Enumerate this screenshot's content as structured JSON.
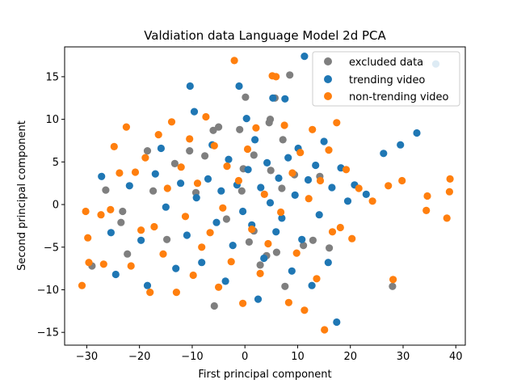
{
  "chart_data": {
    "type": "scatter",
    "title": "Valdiation data Language Model 2d PCA",
    "xlabel": "First principal component",
    "ylabel": "Second principal component",
    "xlim": [
      -34.2,
      41.8
    ],
    "ylim": [
      -16.5,
      18.5
    ],
    "xticks": [
      -30,
      -20,
      -10,
      0,
      10,
      20,
      30,
      40
    ],
    "yticks": [
      -15,
      -10,
      -5,
      0,
      5,
      10,
      15
    ],
    "grid": false,
    "legend_position": "top-right",
    "series": [
      {
        "name": "excluded data",
        "color": "#7f7f7f",
        "points": [
          [
            -29.0,
            -7.2
          ],
          [
            -26.4,
            1.7
          ],
          [
            -23.5,
            -2.1
          ],
          [
            -23.2,
            -0.8
          ],
          [
            -22.3,
            -5.8
          ],
          [
            -18.5,
            6.3
          ],
          [
            -17.4,
            1.6
          ],
          [
            -14.8,
            -4.1
          ],
          [
            -13.3,
            4.8
          ],
          [
            -10.5,
            6.3
          ],
          [
            -9.3,
            1.4
          ],
          [
            -7.6,
            5.7
          ],
          [
            -6.0,
            8.7
          ],
          [
            -5.8,
            -11.9
          ],
          [
            -5.0,
            9.1
          ],
          [
            -3.5,
            -1.7
          ],
          [
            -1.0,
            8.8
          ],
          [
            -0.6,
            1.6
          ],
          [
            -0.3,
            4.2
          ],
          [
            0.1,
            12.6
          ],
          [
            0.8,
            -4.4
          ],
          [
            1.7,
            -3.1
          ],
          [
            1.7,
            5.8
          ],
          [
            2.9,
            -7.1
          ],
          [
            4.1,
            -6.0
          ],
          [
            4.6,
            9.6
          ],
          [
            4.8,
            10.0
          ],
          [
            4.9,
            4.0
          ],
          [
            5.7,
            12.5
          ],
          [
            6.0,
            -5.6
          ],
          [
            7.0,
            1.9
          ],
          [
            7.2,
            7.6
          ],
          [
            7.6,
            -9.6
          ],
          [
            8.5,
            15.2
          ],
          [
            9.4,
            3.5
          ],
          [
            11.1,
            -4.8
          ],
          [
            12.9,
            -4.2
          ],
          [
            14.2,
            3.3
          ],
          [
            16.0,
            -5.1
          ],
          [
            28.0,
            -9.6
          ]
        ]
      },
      {
        "name": "trending video",
        "color": "#1f77b4",
        "points": [
          [
            -27.2,
            3.3
          ],
          [
            -25.4,
            -3.3
          ],
          [
            -24.5,
            -8.2
          ],
          [
            -21.9,
            2.2
          ],
          [
            -19.7,
            -4.2
          ],
          [
            -18.5,
            -9.5
          ],
          [
            -17.0,
            3.6
          ],
          [
            -15.9,
            6.6
          ],
          [
            -15.0,
            -0.3
          ],
          [
            -13.1,
            -7.5
          ],
          [
            -12.2,
            2.5
          ],
          [
            -11.0,
            -3.6
          ],
          [
            -10.4,
            13.9
          ],
          [
            -9.6,
            10.9
          ],
          [
            -9.2,
            0.8
          ],
          [
            -8.2,
            -6.8
          ],
          [
            -7.0,
            3.0
          ],
          [
            -6.2,
            7.0
          ],
          [
            -5.4,
            -2.1
          ],
          [
            -4.5,
            1.6
          ],
          [
            -3.7,
            -9.0
          ],
          [
            -3.1,
            5.3
          ],
          [
            -2.3,
            -4.8
          ],
          [
            -1.5,
            2.3
          ],
          [
            -1.1,
            13.9
          ],
          [
            -0.4,
            -0.8
          ],
          [
            0.3,
            10.1
          ],
          [
            0.6,
            4.1
          ],
          [
            1.3,
            -2.4
          ],
          [
            1.9,
            7.6
          ],
          [
            2.5,
            -11.1
          ],
          [
            3.0,
            2.0
          ],
          [
            3.6,
            -6.3
          ],
          [
            4.2,
            4.9
          ],
          [
            4.8,
            0.2
          ],
          [
            5.3,
            12.5
          ],
          [
            5.9,
            -3.2
          ],
          [
            6.4,
            3.1
          ],
          [
            7.0,
            -1.6
          ],
          [
            7.6,
            12.4
          ],
          [
            8.2,
            5.5
          ],
          [
            8.9,
            -7.8
          ],
          [
            9.5,
            1.1
          ],
          [
            10.1,
            6.6
          ],
          [
            10.8,
            -4.1
          ],
          [
            11.3,
            17.4
          ],
          [
            12.0,
            2.9
          ],
          [
            12.7,
            -9.5
          ],
          [
            13.4,
            4.6
          ],
          [
            14.1,
            -1.2
          ],
          [
            15.0,
            7.4
          ],
          [
            15.8,
            -6.8
          ],
          [
            16.5,
            2.0
          ],
          [
            17.4,
            -13.8
          ],
          [
            18.2,
            4.3
          ],
          [
            19.5,
            0.4
          ],
          [
            20.8,
            2.3
          ],
          [
            23.0,
            1.2
          ],
          [
            26.3,
            6.0
          ],
          [
            29.5,
            7.0
          ],
          [
            32.6,
            8.4
          ],
          [
            36.2,
            16.5
          ]
        ]
      },
      {
        "name": "non-trending video",
        "color": "#ff7f0e",
        "points": [
          [
            -30.9,
            -9.5
          ],
          [
            -30.2,
            -0.8
          ],
          [
            -29.8,
            -3.9
          ],
          [
            -29.6,
            -6.8
          ],
          [
            -27.3,
            -1.2
          ],
          [
            -26.8,
            -7.0
          ],
          [
            -25.5,
            -0.6
          ],
          [
            -24.8,
            6.8
          ],
          [
            -23.8,
            3.7
          ],
          [
            -22.5,
            9.1
          ],
          [
            -21.6,
            -7.2
          ],
          [
            -20.8,
            3.8
          ],
          [
            -19.7,
            -3.0
          ],
          [
            -18.9,
            5.5
          ],
          [
            -18.0,
            -10.3
          ],
          [
            -17.2,
            -2.6
          ],
          [
            -16.4,
            8.2
          ],
          [
            -15.5,
            -5.8
          ],
          [
            -14.7,
            1.9
          ],
          [
            -13.9,
            9.7
          ],
          [
            -13.0,
            -10.3
          ],
          [
            -12.1,
            4.4
          ],
          [
            -11.3,
            -1.4
          ],
          [
            -10.5,
            7.7
          ],
          [
            -9.8,
            -8.3
          ],
          [
            -9.0,
            2.5
          ],
          [
            -8.2,
            -5.0
          ],
          [
            -7.4,
            10.3
          ],
          [
            -6.6,
            -3.3
          ],
          [
            -5.8,
            6.9
          ],
          [
            -5.0,
            -9.7
          ],
          [
            -4.2,
            -0.4
          ],
          [
            -3.4,
            4.5
          ],
          [
            -2.6,
            -6.7
          ],
          [
            -2.0,
            16.9
          ],
          [
            -1.2,
            2.8
          ],
          [
            -0.4,
            -11.6
          ],
          [
            0.5,
            6.5
          ],
          [
            1.3,
            -2.9
          ],
          [
            2.1,
            9.0
          ],
          [
            2.9,
            -8.1
          ],
          [
            3.7,
            1.2
          ],
          [
            4.4,
            -4.6
          ],
          [
            5.2,
            15.1
          ],
          [
            5.9,
            15.0
          ],
          [
            6.8,
            -0.9
          ],
          [
            7.5,
            9.3
          ],
          [
            8.3,
            -11.5
          ],
          [
            9.0,
            3.7
          ],
          [
            9.8,
            -5.7
          ],
          [
            10.5,
            6.1
          ],
          [
            11.3,
            -12.4
          ],
          [
            12.1,
            0.7
          ],
          [
            12.8,
            8.8
          ],
          [
            13.6,
            -8.7
          ],
          [
            14.3,
            2.8
          ],
          [
            15.1,
            -14.7
          ],
          [
            15.9,
            6.4
          ],
          [
            16.6,
            -3.2
          ],
          [
            17.4,
            9.6
          ],
          [
            18.1,
            -2.7
          ],
          [
            19.2,
            4.1
          ],
          [
            20.3,
            -4.0
          ],
          [
            21.6,
            1.9
          ],
          [
            24.2,
            0.4
          ],
          [
            27.2,
            2.2
          ],
          [
            28.1,
            -8.8
          ],
          [
            29.8,
            2.8
          ],
          [
            34.4,
            -0.7
          ],
          [
            34.6,
            1.0
          ],
          [
            38.3,
            -1.6
          ],
          [
            38.8,
            1.5
          ],
          [
            38.9,
            3.0
          ]
        ]
      }
    ]
  }
}
